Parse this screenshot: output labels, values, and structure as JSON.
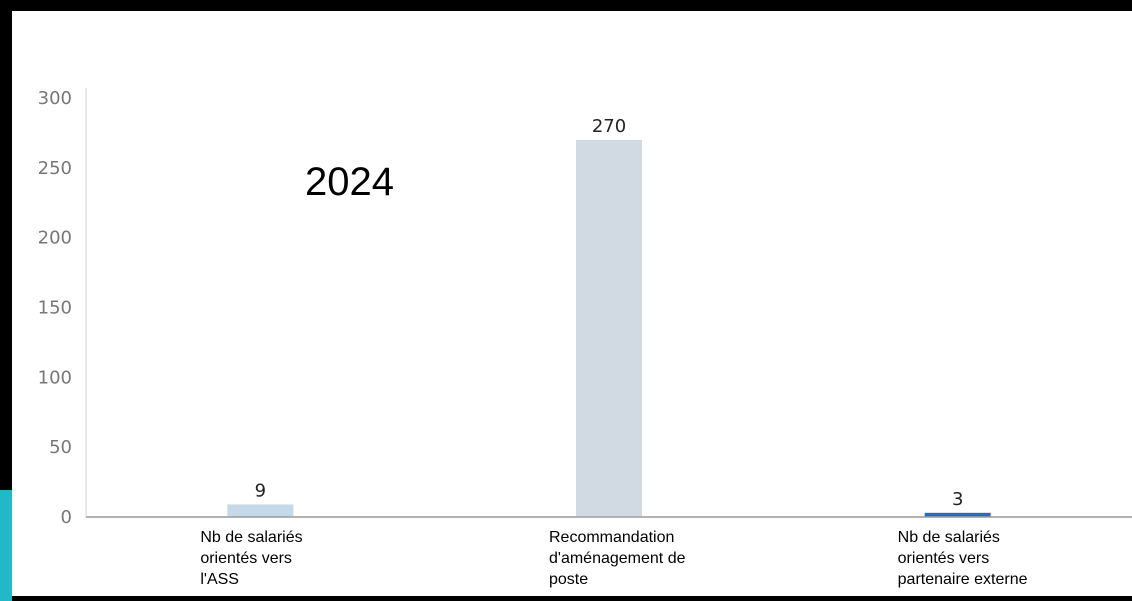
{
  "annotation": "2024",
  "chart_data": {
    "type": "bar",
    "categories": [
      [
        "Nb de salariés",
        "orientés vers",
        "l'ASS"
      ],
      [
        "Recommandation",
        "d'aménagement de",
        "poste"
      ],
      [
        "Nb de salariés",
        "orientés vers",
        "partenaire externe"
      ]
    ],
    "values": [
      9,
      270,
      3
    ],
    "data_labels": [
      "9",
      "270",
      "3"
    ],
    "colors": [
      "#c6d9e8",
      "#d1d9e2",
      "#1f6fc9"
    ],
    "ylim": [
      0,
      300
    ],
    "yticks": [
      0,
      50,
      100,
      150,
      200,
      250,
      300
    ],
    "grid": false,
    "legend": "none"
  }
}
